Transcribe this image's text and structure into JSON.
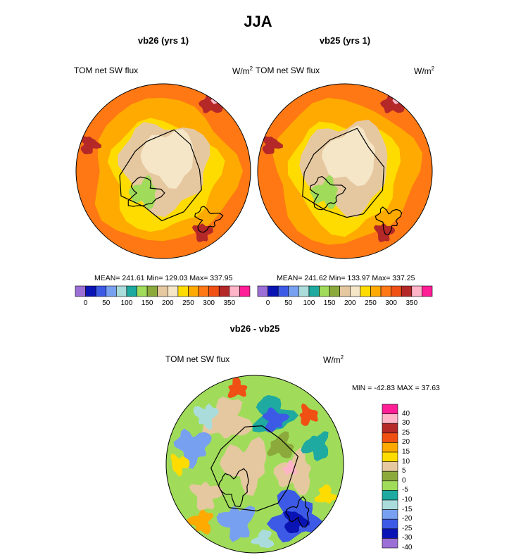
{
  "page_title": "JJA",
  "chart_data": [
    {
      "type": "heatmap",
      "projection": "polar-stereographic-north",
      "title": "vb26 (yrs 1)",
      "left_label": "TOM net SW flux",
      "units_text": "W/m",
      "units_sup": "2",
      "stats": "MEAN= 241.61  Min= 129.03  Max= 337.95",
      "stats_values": {
        "mean": 241.61,
        "min": 129.03,
        "max": 337.95
      },
      "colorbar": {
        "ticks": [
          "0",
          "50",
          "100",
          "150",
          "200",
          "250",
          "300",
          "350"
        ],
        "levels": [
          0,
          25,
          50,
          75,
          100,
          125,
          150,
          175,
          200,
          225,
          250,
          275,
          300,
          325,
          350
        ],
        "colors": [
          "#9b6fd6",
          "#0a14b4",
          "#3c5ae6",
          "#78a0f0",
          "#aadcdc",
          "#1eaaa0",
          "#a0dc5a",
          "#8caa3c",
          "#e6c8a0",
          "#f5e6c8",
          "#ffdc00",
          "#ffaa00",
          "#ff7814",
          "#f05014",
          "#b42828",
          "#ffb4c8",
          "#ff1e96"
        ]
      }
    },
    {
      "type": "heatmap",
      "projection": "polar-stereographic-north",
      "title": "vb25 (yrs 1)",
      "left_label": "TOM net SW flux",
      "units_text": "W/m",
      "units_sup": "2",
      "stats": "MEAN= 241.62  Min= 133.97  Max= 337.25",
      "stats_values": {
        "mean": 241.62,
        "min": 133.97,
        "max": 337.25
      },
      "colorbar": {
        "ticks": [
          "0",
          "50",
          "100",
          "150",
          "200",
          "250",
          "300",
          "350"
        ],
        "levels": [
          0,
          25,
          50,
          75,
          100,
          125,
          150,
          175,
          200,
          225,
          250,
          275,
          300,
          325,
          350
        ],
        "colors": [
          "#9b6fd6",
          "#0a14b4",
          "#3c5ae6",
          "#78a0f0",
          "#aadcdc",
          "#1eaaa0",
          "#a0dc5a",
          "#8caa3c",
          "#e6c8a0",
          "#f5e6c8",
          "#ffdc00",
          "#ffaa00",
          "#ff7814",
          "#f05014",
          "#b42828",
          "#ffb4c8",
          "#ff1e96"
        ]
      }
    },
    {
      "type": "heatmap",
      "projection": "polar-stereographic-north",
      "title": "vb26 - vb25",
      "left_label": "TOM net SW flux",
      "units_text": "W/m",
      "units_sup": "2",
      "stats": "MIN = -42.83 MAX =  37.63",
      "stats_values": {
        "min": -42.83,
        "max": 37.63
      },
      "colorbar": {
        "ticks": [
          "40",
          "30",
          "25",
          "20",
          "15",
          "10",
          "5",
          "0",
          "-5",
          "-10",
          "-15",
          "-20",
          "-25",
          "-30",
          "-40"
        ],
        "colors_top_to_bottom": [
          "#ff1e96",
          "#ffb4c8",
          "#b42828",
          "#f05014",
          "#ffaa00",
          "#ffdc00",
          "#e6c8a0",
          "#8caa3c",
          "#a0dc5a",
          "#1eaaa0",
          "#aadcdc",
          "#78a0f0",
          "#3c5ae6",
          "#0a14b4",
          "#9b6fd6"
        ]
      }
    }
  ]
}
